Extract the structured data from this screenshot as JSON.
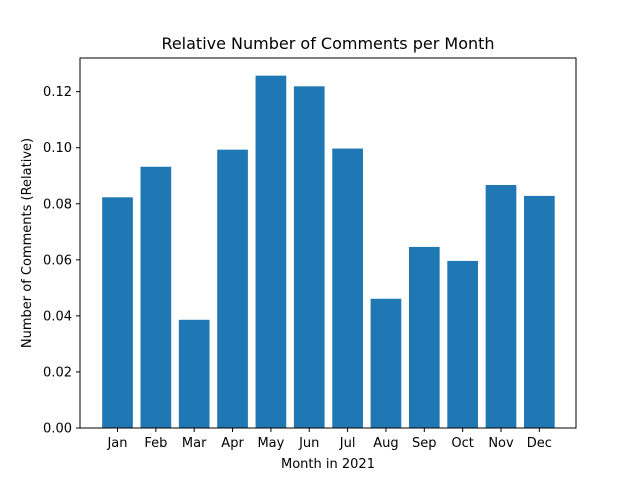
{
  "chart_data": {
    "type": "bar",
    "title": "Relative Number of Comments per Month",
    "xlabel": "Month in 2021",
    "ylabel": "Number of Comments (Relative)",
    "categories": [
      "Jan",
      "Feb",
      "Mar",
      "Apr",
      "May",
      "Jun",
      "Jul",
      "Aug",
      "Sep",
      "Oct",
      "Nov",
      "Dec"
    ],
    "values": [
      0.0823,
      0.0932,
      0.0386,
      0.0993,
      0.1257,
      0.1219,
      0.0997,
      0.0461,
      0.0646,
      0.0596,
      0.0867,
      0.0828
    ],
    "ylim": [
      0,
      0.132
    ],
    "yticks": [
      0.0,
      0.02,
      0.04,
      0.06,
      0.08,
      0.1,
      0.12
    ],
    "ytick_labels": [
      "0.00",
      "0.02",
      "0.04",
      "0.06",
      "0.08",
      "0.10",
      "0.12"
    ],
    "grid": false,
    "bar_color": "#1f77b4"
  }
}
